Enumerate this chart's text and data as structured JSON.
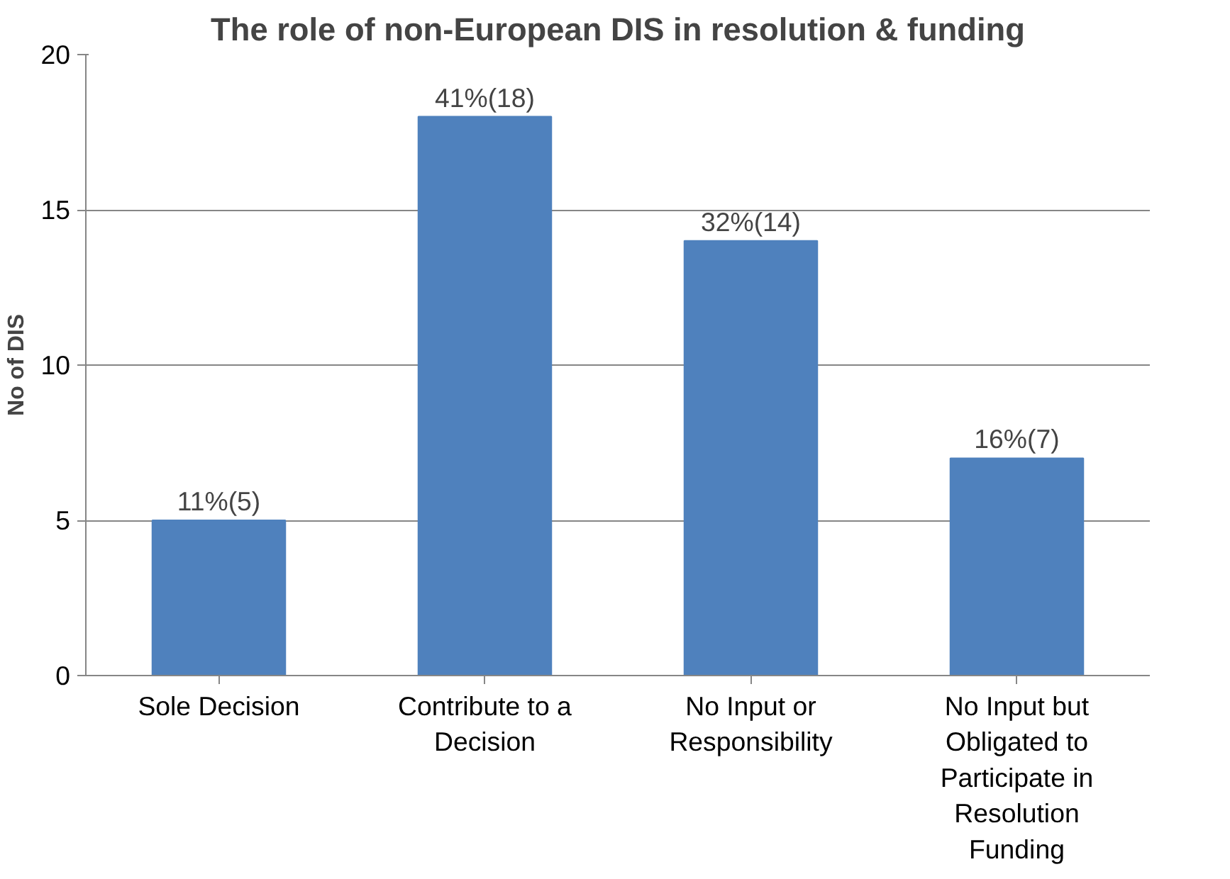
{
  "chart_data": {
    "type": "bar",
    "title": "The role of non-European DIS in resolution & funding",
    "ylabel": "No of DIS",
    "categories": [
      "Sole Decision",
      "Contribute to a Decision",
      "No Input or Responsibility",
      "No Input but Obligated to Participate in Resolution Funding"
    ],
    "values": [
      5,
      18,
      14,
      7
    ],
    "color": "#4f81bd",
    "value_labels": [
      "11%(5)",
      "41%(18)",
      "32%(14)",
      "16%(7)"
    ],
    "ylim": [
      0,
      20
    ],
    "yticks": [
      0,
      5,
      10,
      15,
      20
    ],
    "grid": "y"
  }
}
